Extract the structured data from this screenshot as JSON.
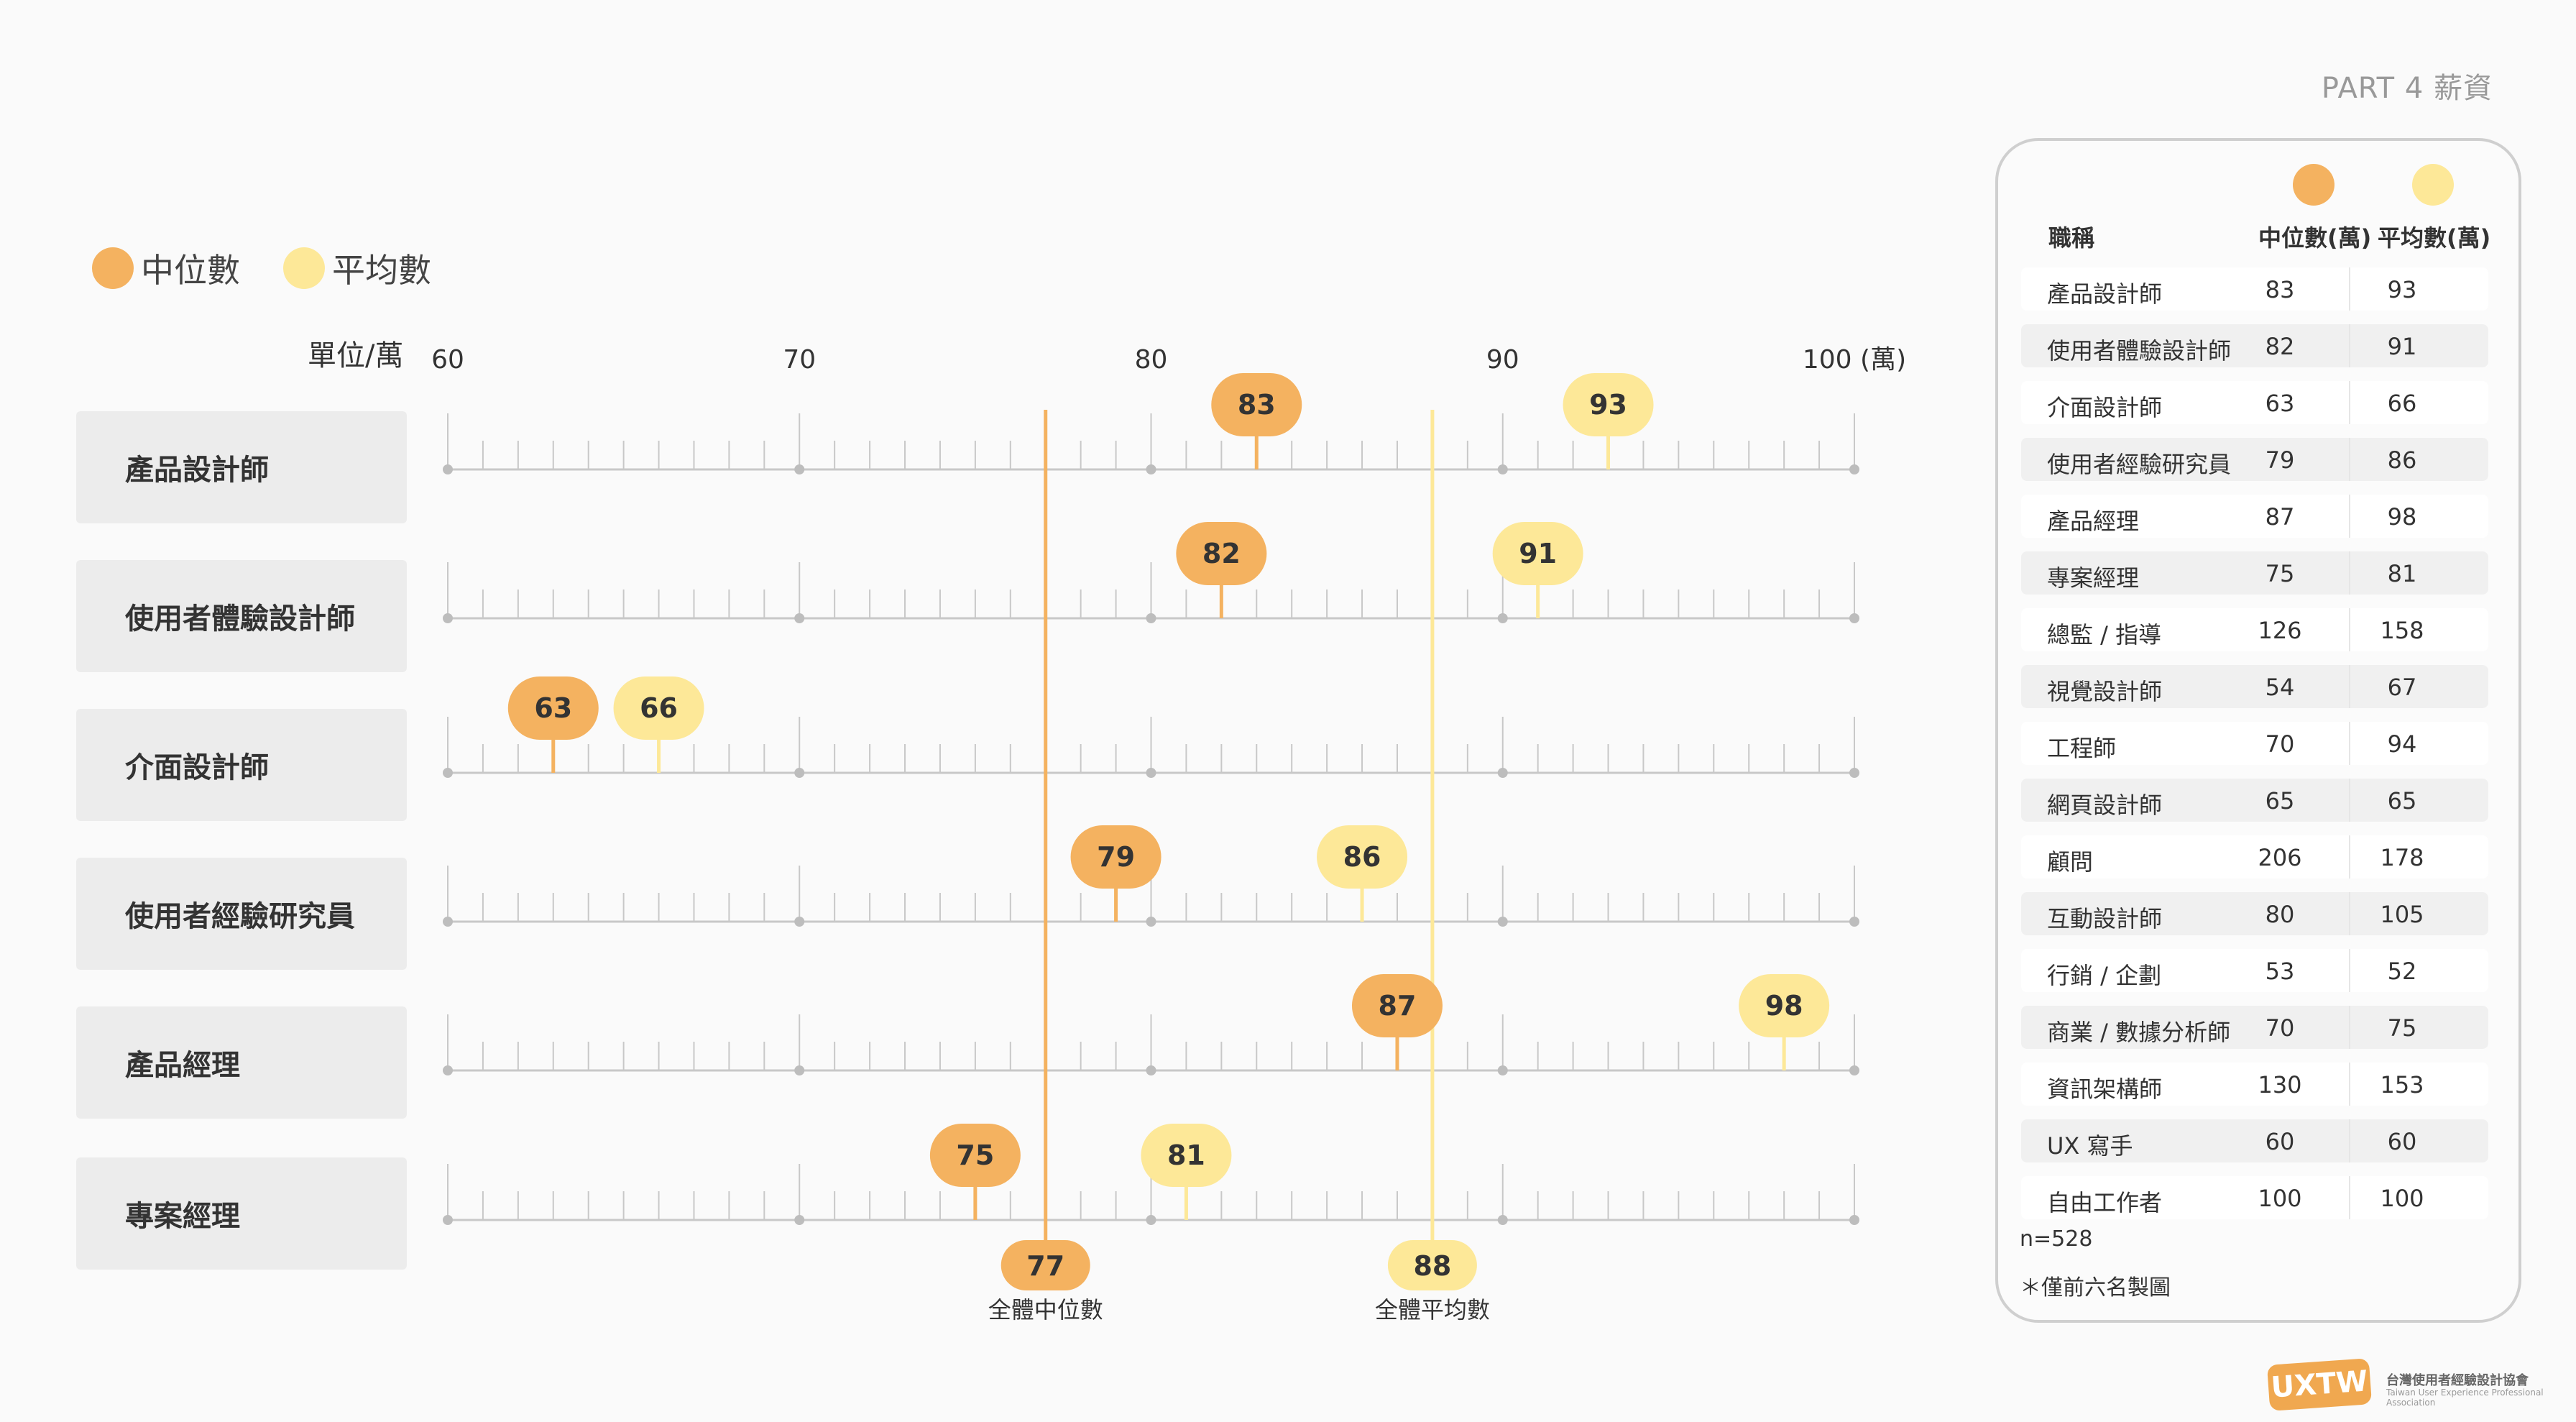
{
  "header": {
    "part_title": "PART 4 薪資"
  },
  "legend": {
    "median_label": "中位數",
    "mean_label": "平均數"
  },
  "colors": {
    "median": "#f4b260",
    "mean": "#fde898",
    "axis": "#c8c8c8",
    "axis_dot": "#bdbdbd"
  },
  "chart_data": {
    "type": "dot-plot",
    "unit_label": "單位/萬",
    "x_ticks": [
      "60",
      "70",
      "80",
      "90",
      "100 (萬)"
    ],
    "xlim": [
      60,
      100
    ],
    "categories": [
      "產品設計師",
      "使用者體驗設計師",
      "介面設計師",
      "使用者經驗研究員",
      "產品經理",
      "專案經理"
    ],
    "series": [
      {
        "name": "中位數",
        "values": [
          83,
          82,
          63,
          79,
          87,
          75
        ]
      },
      {
        "name": "平均數",
        "values": [
          93,
          91,
          66,
          86,
          98,
          81
        ]
      }
    ],
    "reference_lines": [
      {
        "label": "全體中位數",
        "value": 77
      },
      {
        "label": "全體平均數",
        "value": 88
      }
    ]
  },
  "table": {
    "headers": {
      "title": "職稱",
      "median": "中位數(萬)",
      "mean": "平均數(萬)"
    },
    "rows": [
      {
        "title": "產品設計師",
        "median": "83",
        "mean": "93"
      },
      {
        "title": "使用者體驗設計師",
        "median": "82",
        "mean": "91"
      },
      {
        "title": "介面設計師",
        "median": "63",
        "mean": "66"
      },
      {
        "title": "使用者經驗研究員",
        "median": "79",
        "mean": "86"
      },
      {
        "title": "產品經理",
        "median": "87",
        "mean": "98"
      },
      {
        "title": "專案經理",
        "median": "75",
        "mean": "81"
      },
      {
        "title": "總監 / 指導",
        "median": "126",
        "mean": "158"
      },
      {
        "title": "視覺設計師",
        "median": "54",
        "mean": "67"
      },
      {
        "title": "工程師",
        "median": "70",
        "mean": "94"
      },
      {
        "title": "網頁設計師",
        "median": "65",
        "mean": "65"
      },
      {
        "title": "顧問",
        "median": "206",
        "mean": "178"
      },
      {
        "title": "互動設計師",
        "median": "80",
        "mean": "105"
      },
      {
        "title": "行銷 / 企劃",
        "median": "53",
        "mean": "52"
      },
      {
        "title": "商業 / 數據分析師",
        "median": "70",
        "mean": "75"
      },
      {
        "title": "資訊架構師",
        "median": "130",
        "mean": "153"
      },
      {
        "title": "UX 寫手",
        "median": "60",
        "mean": "60"
      },
      {
        "title": "自由工作者",
        "median": "100",
        "mean": "100"
      }
    ],
    "note_n": "n=528",
    "note_footnote": "＊僅前六名製圖"
  },
  "logo": {
    "mark": "UXTW",
    "org_name": "台灣使用者經驗設計協會",
    "org_sub": "Taiwan User Experience Professional Association"
  }
}
